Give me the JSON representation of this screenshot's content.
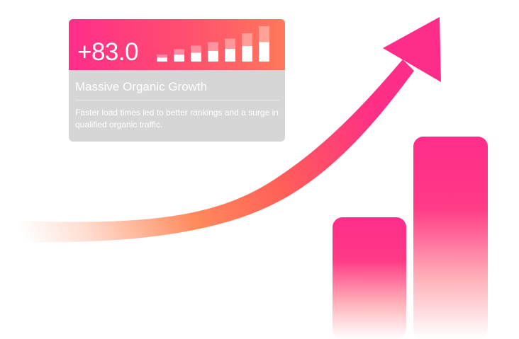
{
  "card": {
    "stat_value": "+83.0",
    "title": "Massive Organic Growth",
    "description": "Faster load times led to better rankings and a surge in qualified organic traffic.",
    "mini_bar_levels": [
      0.2,
      0.35,
      0.45,
      0.55,
      0.65,
      0.8,
      1.0
    ]
  },
  "graphics": {
    "trend_arrow_icon": "trend-up-arrow-icon",
    "bar_pair_values": [
      0.53,
      0.87
    ]
  },
  "colors": {
    "pink": "#ff2d8a",
    "coral": "#ff6a4f",
    "card_grey": "#d6d6d6"
  }
}
